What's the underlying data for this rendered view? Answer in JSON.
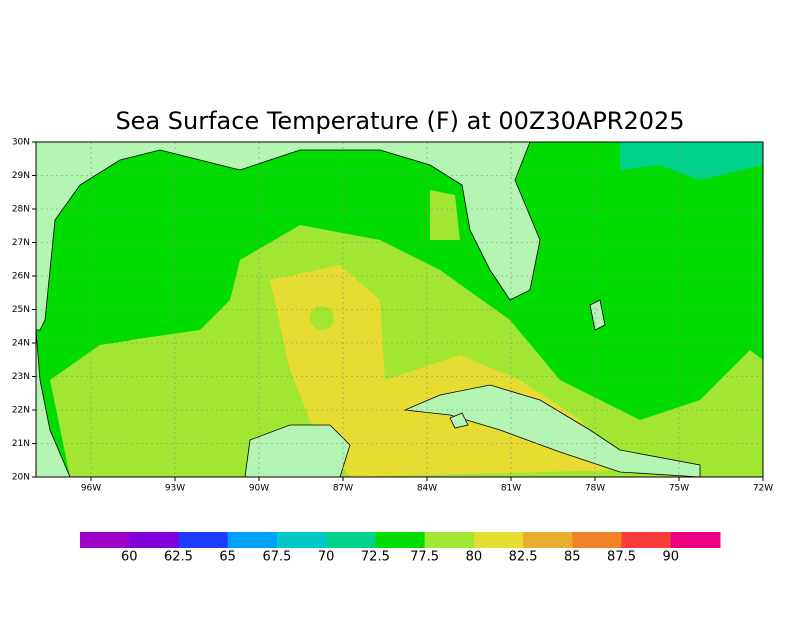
{
  "title": "Sea Surface Temperature (F) at 00Z30APR2025",
  "lon_ticks": [
    {
      "value": -96,
      "label": "96W"
    },
    {
      "value": -93,
      "label": "93W"
    },
    {
      "value": -90,
      "label": "90W"
    },
    {
      "value": -87,
      "label": "87W"
    },
    {
      "value": -84,
      "label": "84W"
    },
    {
      "value": -81,
      "label": "81W"
    },
    {
      "value": -78,
      "label": "78W"
    },
    {
      "value": -75,
      "label": "75W"
    },
    {
      "value": -72,
      "label": "72W"
    }
  ],
  "lat_ticks": [
    {
      "value": 30,
      "label": "30N"
    },
    {
      "value": 29,
      "label": "29N"
    },
    {
      "value": 28,
      "label": "28N"
    },
    {
      "value": 27,
      "label": "27N"
    },
    {
      "value": 26,
      "label": "26N"
    },
    {
      "value": 25,
      "label": "25N"
    },
    {
      "value": 24,
      "label": "24N"
    },
    {
      "value": 23,
      "label": "23N"
    },
    {
      "value": 22,
      "label": "22N"
    },
    {
      "value": 21,
      "label": "21N"
    },
    {
      "value": 20,
      "label": "20N"
    }
  ],
  "colorbar": {
    "colors": [
      "#a000c8",
      "#8200dc",
      "#1e3cff",
      "#00a0ff",
      "#00c8c8",
      "#00d28c",
      "#00dc00",
      "#a0e632",
      "#e6dc32",
      "#e6af2d",
      "#f08228",
      "#fa3c3c",
      "#f00082"
    ],
    "labels": [
      60,
      62.5,
      65,
      67.5,
      70,
      72.5,
      77.5,
      80,
      82.5,
      85,
      87.5,
      90
    ]
  }
}
